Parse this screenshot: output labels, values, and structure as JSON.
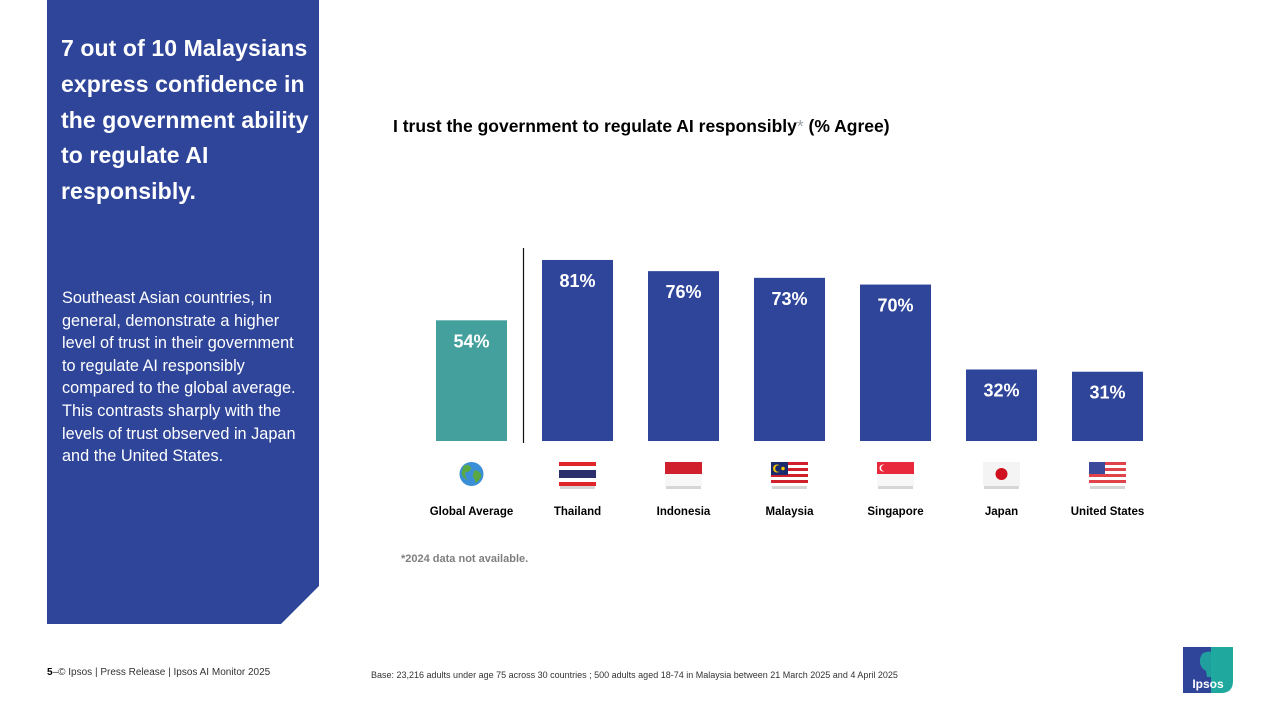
{
  "side_panel": {
    "headline": "7 out of 10 Malaysians express confidence in the government ability to regulate AI responsibly.",
    "body": "Southeast Asian countries, in general, demonstrate a higher level of trust in their government to regulate AI responsibly compared to the global average. This contrasts sharply with the levels of trust observed in Japan and the United States."
  },
  "chart_data": {
    "type": "bar",
    "title": "I trust the government to regulate AI responsibly",
    "title_asterisk": "*",
    "title_suffix": " (% Agree)",
    "categories": [
      "Global Average",
      "Thailand",
      "Indonesia",
      "Malaysia",
      "Singapore",
      "Japan",
      "United States"
    ],
    "values": [
      54,
      81,
      76,
      73,
      70,
      32,
      31
    ],
    "data_labels": [
      "54%",
      "81%",
      "76%",
      "73%",
      "70%",
      "32%",
      "31%"
    ],
    "icons": [
      "globe-icon",
      "thailand-flag-icon",
      "indonesia-flag-icon",
      "malaysia-flag-icon",
      "singapore-flag-icon",
      "japan-flag-icon",
      "united-states-flag-icon"
    ],
    "colors": {
      "global": "#43a09d",
      "country": "#2f459a"
    },
    "xlabel": "",
    "ylabel": "",
    "ylim": [
      0,
      100
    ],
    "grid": false,
    "separator_after_index": 0
  },
  "footnote": "*2024 data not available.",
  "footer": {
    "page_number": "5",
    "text": "–© Ipsos | Press Release | Ipsos AI Monitor 2025",
    "base": "Base: 23,216 adults under age 75 across 30 countries ; 500 adults aged 18-74 in Malaysia between 21 March 2025 and 4 April 2025"
  },
  "logo": {
    "text": "Ipsos",
    "colors": {
      "blue": "#2f459a",
      "teal": "#1fa99e"
    }
  }
}
